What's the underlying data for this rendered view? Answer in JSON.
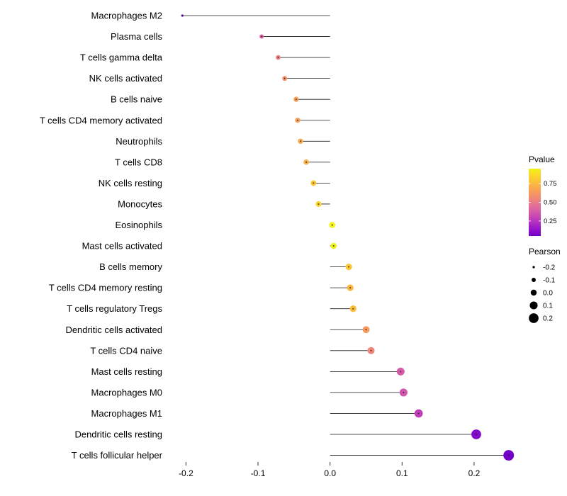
{
  "figure": {
    "background": "#ffffff",
    "text_color": "#1a1a1a",
    "stick_color": "#1a1a1a"
  },
  "chart_data": {
    "type": "scatter",
    "subtype": "lollipop",
    "title": "",
    "xlabel": "",
    "ylabel": "",
    "xlim": [
      -0.225,
      0.265
    ],
    "grid": false,
    "x_ticks": [
      -0.2,
      -0.1,
      0.0,
      0.1,
      0.2
    ],
    "x_tick_labels": [
      "-0.2",
      "-0.1",
      "0.0",
      "0.1",
      "0.2"
    ],
    "points": [
      {
        "cell": "Macrophages M2",
        "pearson": -0.205,
        "pvalue": 0.03
      },
      {
        "cell": "Plasma cells",
        "pearson": -0.095,
        "pvalue": 0.4
      },
      {
        "cell": "T cells gamma delta",
        "pearson": -0.072,
        "pvalue": 0.52
      },
      {
        "cell": "NK cells activated",
        "pearson": -0.063,
        "pvalue": 0.6
      },
      {
        "cell": "B cells naive",
        "pearson": -0.047,
        "pvalue": 0.66
      },
      {
        "cell": "T cells CD4 memory activated",
        "pearson": -0.045,
        "pvalue": 0.66
      },
      {
        "cell": "Neutrophils",
        "pearson": -0.041,
        "pvalue": 0.7
      },
      {
        "cell": "T cells CD8",
        "pearson": -0.033,
        "pvalue": 0.72
      },
      {
        "cell": "NK cells resting",
        "pearson": -0.023,
        "pvalue": 0.8
      },
      {
        "cell": "Monocytes",
        "pearson": -0.016,
        "pvalue": 0.85
      },
      {
        "cell": "Eosinophils",
        "pearson": 0.003,
        "pvalue": 0.97
      },
      {
        "cell": "Mast cells activated",
        "pearson": 0.005,
        "pvalue": 0.97
      },
      {
        "cell": "B cells memory",
        "pearson": 0.026,
        "pvalue": 0.8
      },
      {
        "cell": "T cells CD4 memory resting",
        "pearson": 0.028,
        "pvalue": 0.74
      },
      {
        "cell": "T cells regulatory Tregs",
        "pearson": 0.032,
        "pvalue": 0.77
      },
      {
        "cell": "Dendritic cells activated",
        "pearson": 0.05,
        "pvalue": 0.63
      },
      {
        "cell": "T cells CD4 naive",
        "pearson": 0.057,
        "pvalue": 0.55
      },
      {
        "cell": "Mast cells resting",
        "pearson": 0.098,
        "pvalue": 0.38
      },
      {
        "cell": "Macrophages M0",
        "pearson": 0.102,
        "pvalue": 0.36
      },
      {
        "cell": "Macrophages M1",
        "pearson": 0.123,
        "pvalue": 0.28
      },
      {
        "cell": "Dendritic cells resting",
        "pearson": 0.203,
        "pvalue": 0.1
      },
      {
        "cell": "T cells follicular helper",
        "pearson": 0.248,
        "pvalue": 0.06
      }
    ],
    "legend": {
      "color": {
        "title": "Pvalue",
        "ticks": [
          0.75,
          0.5,
          0.25
        ],
        "tick_labels": [
          "0.75",
          "0.50",
          "0.25"
        ],
        "domain": [
          0.05,
          0.95
        ],
        "stops": [
          {
            "t": 0.0,
            "color": "#6F00C8"
          },
          {
            "t": 0.1,
            "color": "#9713CE"
          },
          {
            "t": 0.25,
            "color": "#BF3DB8"
          },
          {
            "t": 0.42,
            "color": "#DF69A0"
          },
          {
            "t": 0.55,
            "color": "#EF8579"
          },
          {
            "t": 0.68,
            "color": "#F8A155"
          },
          {
            "t": 0.8,
            "color": "#FCBE3A"
          },
          {
            "t": 0.9,
            "color": "#FCD72A"
          },
          {
            "t": 1.0,
            "color": "#F1F218"
          }
        ]
      },
      "size": {
        "title": "Pearson",
        "ticks": [
          -0.2,
          -0.1,
          0.0,
          0.1,
          0.2
        ],
        "tick_labels": [
          "-0.2",
          "-0.1",
          "0.0",
          "0.1",
          "0.2"
        ],
        "key_color": "#000000"
      }
    }
  }
}
